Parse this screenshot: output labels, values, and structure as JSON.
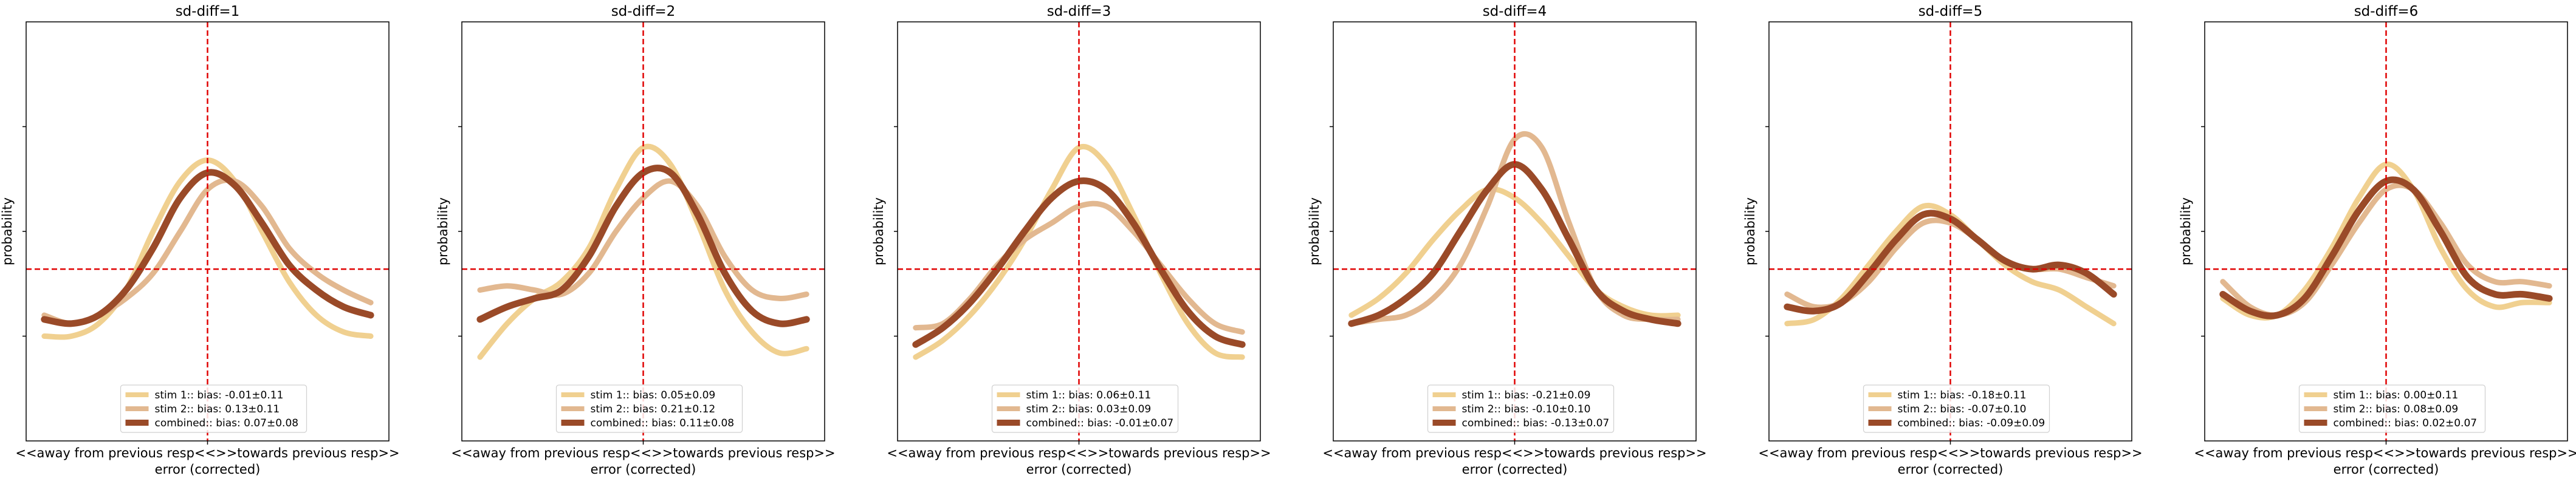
{
  "colors": {
    "stim1": "#f0d090",
    "stim2": "#e2b890",
    "combined": "#9a4a28",
    "reference": "#e00000",
    "axes": "#000000"
  },
  "chart_data": [
    {
      "type": "line",
      "title": "sd-diff=1",
      "xlabel": "error (corrected)",
      "x_tick_label": "<<away from previous resp<<>>towards previous resp>>",
      "ylabel": "probability",
      "xlim": [
        -1,
        1
      ],
      "ylim": [
        0,
        1
      ],
      "reference_lines": {
        "x": 0.0,
        "y": 0.41
      },
      "legend_placement": "lower center",
      "x": [
        -0.9,
        -0.75,
        -0.6,
        -0.45,
        -0.3,
        -0.15,
        0.0,
        0.15,
        0.3,
        0.45,
        0.6,
        0.75,
        0.9
      ],
      "series": [
        {
          "name": "stim 1:: bias: -0.01±0.11",
          "values": [
            0.25,
            0.25,
            0.28,
            0.36,
            0.5,
            0.62,
            0.67,
            0.62,
            0.5,
            0.38,
            0.3,
            0.26,
            0.25
          ]
        },
        {
          "name": "stim 2:: bias: 0.13±0.11",
          "values": [
            0.3,
            0.28,
            0.3,
            0.34,
            0.4,
            0.5,
            0.6,
            0.62,
            0.56,
            0.46,
            0.4,
            0.36,
            0.33
          ]
        },
        {
          "name": "combined:: bias: 0.07±0.08",
          "values": [
            0.29,
            0.28,
            0.3,
            0.36,
            0.46,
            0.58,
            0.64,
            0.61,
            0.52,
            0.42,
            0.36,
            0.32,
            0.3
          ]
        }
      ]
    },
    {
      "type": "line",
      "title": "sd-diff=2",
      "xlabel": "error (corrected)",
      "x_tick_label": "<<away from previous resp<<>>towards previous resp>>",
      "ylabel": "probability",
      "xlim": [
        -1,
        1
      ],
      "ylim": [
        0,
        1
      ],
      "reference_lines": {
        "x": 0.0,
        "y": 0.41
      },
      "legend_placement": "lower center",
      "x": [
        -0.9,
        -0.75,
        -0.6,
        -0.45,
        -0.3,
        -0.15,
        0.0,
        0.15,
        0.3,
        0.45,
        0.6,
        0.75,
        0.9
      ],
      "series": [
        {
          "name": "stim 1:: bias: 0.05±0.09",
          "values": [
            0.2,
            0.28,
            0.34,
            0.38,
            0.46,
            0.6,
            0.7,
            0.66,
            0.52,
            0.36,
            0.26,
            0.21,
            0.22
          ]
        },
        {
          "name": "stim 2:: bias: 0.21±0.12",
          "values": [
            0.36,
            0.37,
            0.36,
            0.35,
            0.4,
            0.5,
            0.58,
            0.62,
            0.56,
            0.44,
            0.36,
            0.34,
            0.35
          ]
        },
        {
          "name": "combined:: bias: 0.11±0.08",
          "values": [
            0.29,
            0.32,
            0.34,
            0.36,
            0.44,
            0.56,
            0.64,
            0.64,
            0.54,
            0.4,
            0.31,
            0.28,
            0.29
          ]
        }
      ]
    },
    {
      "type": "line",
      "title": "sd-diff=3",
      "xlabel": "error (corrected)",
      "x_tick_label": "<<away from previous resp<<>>towards previous resp>>",
      "ylabel": "probability",
      "xlim": [
        -1,
        1
      ],
      "ylim": [
        0,
        1
      ],
      "reference_lines": {
        "x": 0.0,
        "y": 0.41
      },
      "legend_placement": "lower center",
      "x": [
        -0.9,
        -0.75,
        -0.6,
        -0.45,
        -0.3,
        -0.15,
        0.0,
        0.15,
        0.3,
        0.45,
        0.6,
        0.75,
        0.9
      ],
      "series": [
        {
          "name": "stim 1:: bias: 0.06±0.11",
          "values": [
            0.2,
            0.24,
            0.3,
            0.38,
            0.48,
            0.6,
            0.7,
            0.66,
            0.54,
            0.4,
            0.28,
            0.21,
            0.2
          ]
        },
        {
          "name": "stim 2:: bias: 0.03±0.09",
          "values": [
            0.27,
            0.28,
            0.34,
            0.42,
            0.48,
            0.52,
            0.56,
            0.56,
            0.5,
            0.42,
            0.34,
            0.28,
            0.26
          ]
        },
        {
          "name": "combined:: bias: -0.01±0.07",
          "values": [
            0.23,
            0.27,
            0.33,
            0.41,
            0.5,
            0.58,
            0.62,
            0.6,
            0.52,
            0.41,
            0.31,
            0.25,
            0.23
          ]
        }
      ]
    },
    {
      "type": "line",
      "title": "sd-diff=4",
      "xlabel": "error (corrected)",
      "x_tick_label": "<<away from previous resp<<>>towards previous resp>>",
      "ylabel": "probability",
      "xlim": [
        -1,
        1
      ],
      "ylim": [
        0,
        1
      ],
      "reference_lines": {
        "x": 0.0,
        "y": 0.41
      },
      "legend_placement": "lower center",
      "x": [
        -0.9,
        -0.75,
        -0.6,
        -0.45,
        -0.3,
        -0.15,
        0.0,
        0.15,
        0.3,
        0.45,
        0.6,
        0.75,
        0.9
      ],
      "series": [
        {
          "name": "stim 1:: bias: -0.21±0.09",
          "values": [
            0.3,
            0.34,
            0.4,
            0.48,
            0.55,
            0.6,
            0.58,
            0.52,
            0.44,
            0.36,
            0.32,
            0.3,
            0.3
          ]
        },
        {
          "name": "stim 2:: bias: -0.10±0.10",
          "values": [
            0.28,
            0.29,
            0.3,
            0.34,
            0.42,
            0.56,
            0.72,
            0.7,
            0.52,
            0.36,
            0.3,
            0.29,
            0.29
          ]
        },
        {
          "name": "combined:: bias: -0.13±0.07",
          "values": [
            0.28,
            0.3,
            0.34,
            0.4,
            0.5,
            0.6,
            0.66,
            0.6,
            0.48,
            0.36,
            0.31,
            0.29,
            0.28
          ]
        }
      ]
    },
    {
      "type": "line",
      "title": "sd-diff=5",
      "xlabel": "error (corrected)",
      "x_tick_label": "<<away from previous resp<<>>towards previous resp>>",
      "ylabel": "probability",
      "xlim": [
        -1,
        1
      ],
      "ylim": [
        0,
        1
      ],
      "reference_lines": {
        "x": 0.0,
        "y": 0.41
      },
      "legend_placement": "lower center",
      "x": [
        -0.9,
        -0.75,
        -0.6,
        -0.45,
        -0.3,
        -0.15,
        0.0,
        0.15,
        0.3,
        0.45,
        0.6,
        0.75,
        0.9
      ],
      "series": [
        {
          "name": "stim 1:: bias: -0.18±0.11",
          "values": [
            0.28,
            0.29,
            0.34,
            0.42,
            0.5,
            0.56,
            0.54,
            0.48,
            0.42,
            0.38,
            0.36,
            0.32,
            0.28
          ]
        },
        {
          "name": "stim 2:: bias: -0.07±0.10",
          "values": [
            0.35,
            0.32,
            0.33,
            0.38,
            0.46,
            0.52,
            0.52,
            0.48,
            0.43,
            0.41,
            0.41,
            0.39,
            0.37
          ]
        },
        {
          "name": "combined:: bias: -0.09±0.09",
          "values": [
            0.32,
            0.31,
            0.33,
            0.4,
            0.48,
            0.54,
            0.53,
            0.48,
            0.43,
            0.41,
            0.42,
            0.4,
            0.35
          ]
        }
      ]
    },
    {
      "type": "line",
      "title": "sd-diff=6",
      "xlabel": "error (corrected)",
      "x_tick_label": "<<away from previous resp<<>>towards previous resp>>",
      "ylabel": "probability",
      "xlim": [
        -1,
        1
      ],
      "ylim": [
        0,
        1
      ],
      "reference_lines": {
        "x": 0.0,
        "y": 0.41
      },
      "legend_placement": "lower center",
      "x": [
        -0.9,
        -0.75,
        -0.6,
        -0.45,
        -0.3,
        -0.15,
        0.0,
        0.15,
        0.3,
        0.45,
        0.6,
        0.75,
        0.9
      ],
      "series": [
        {
          "name": "stim 1:: bias: 0.00±0.11",
          "values": [
            0.34,
            0.3,
            0.3,
            0.36,
            0.46,
            0.58,
            0.66,
            0.6,
            0.46,
            0.36,
            0.32,
            0.33,
            0.33
          ]
        },
        {
          "name": "stim 2:: bias: 0.08±0.09",
          "values": [
            0.38,
            0.32,
            0.3,
            0.33,
            0.42,
            0.52,
            0.6,
            0.6,
            0.52,
            0.42,
            0.38,
            0.38,
            0.37
          ]
        },
        {
          "name": "combined:: bias: 0.02±0.07",
          "values": [
            0.35,
            0.31,
            0.3,
            0.34,
            0.44,
            0.55,
            0.62,
            0.6,
            0.5,
            0.39,
            0.35,
            0.35,
            0.34
          ]
        }
      ]
    }
  ]
}
